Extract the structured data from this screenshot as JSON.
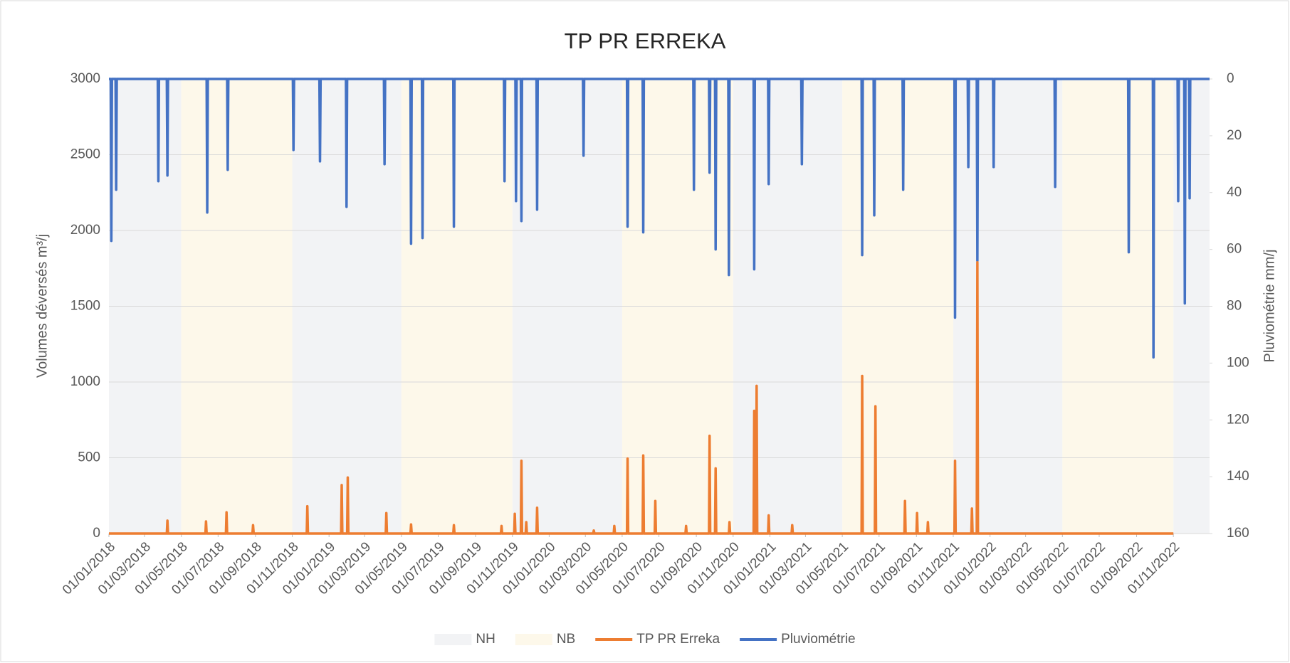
{
  "chart_data": {
    "type": "line",
    "title": "TP PR ERREKA",
    "y_label": "Volumes déversés m³/j",
    "y2_label": "Pluviométrie mm/j",
    "xlim": [
      "01/01/2018",
      "31/12/2022"
    ],
    "xticks": [
      "01/01/2018",
      "01/03/2018",
      "01/05/2018",
      "01/07/2018",
      "01/09/2018",
      "01/11/2018",
      "01/01/2019",
      "01/03/2019",
      "01/05/2019",
      "01/07/2019",
      "01/09/2019",
      "01/11/2019",
      "01/01/2020",
      "01/03/2020",
      "01/05/2020",
      "01/07/2020",
      "01/09/2020",
      "01/11/2020",
      "01/01/2021",
      "01/03/2021",
      "01/05/2021",
      "01/07/2021",
      "01/09/2021",
      "01/11/2021",
      "01/01/2022",
      "01/03/2022",
      "01/05/2022",
      "01/07/2022",
      "01/09/2022",
      "01/11/2022"
    ],
    "ylim": [
      0,
      3000
    ],
    "yticks": [
      0,
      500,
      1000,
      1500,
      2000,
      2500,
      3000
    ],
    "y2lim": [
      160,
      0
    ],
    "y2ticks": [
      0,
      20,
      40,
      60,
      80,
      100,
      120,
      140,
      160
    ],
    "grid": true,
    "legend": "bottom",
    "bands": [
      {
        "name": "NH",
        "color": "#f2f3f5",
        "periods": [
          [
            "01/01/2018",
            "01/05/2018"
          ],
          [
            "01/11/2018",
            "01/05/2019"
          ],
          [
            "01/11/2019",
            "01/05/2020"
          ],
          [
            "01/11/2020",
            "01/05/2021"
          ],
          [
            "01/11/2021",
            "01/05/2022"
          ],
          [
            "01/11/2022",
            "31/12/2022"
          ]
        ]
      },
      {
        "name": "NB",
        "color": "#fdf8ea",
        "periods": [
          [
            "01/05/2018",
            "01/11/2018"
          ],
          [
            "01/05/2019",
            "01/11/2019"
          ],
          [
            "01/05/2020",
            "01/11/2020"
          ],
          [
            "01/05/2021",
            "01/11/2021"
          ],
          [
            "01/05/2022",
            "01/11/2022"
          ]
        ]
      }
    ],
    "series": [
      {
        "name": "Pluviométrie",
        "color": "#4472c4",
        "axis": "y2",
        "x": [
          "01/01/2018",
          "04/01/2018",
          "05/01/2018",
          "06/01/2018",
          "12/01/2018",
          "13/01/2018",
          "14/01/2018",
          "23/03/2018",
          "24/03/2018",
          "25/03/2018",
          "07/04/2018",
          "08/04/2018",
          "09/04/2018",
          "12/06/2018",
          "13/06/2018",
          "14/06/2018",
          "16/07/2018",
          "17/07/2018",
          "18/07/2018",
          "02/11/2018",
          "03/11/2018",
          "04/11/2018",
          "16/12/2018",
          "17/12/2018",
          "18/12/2018",
          "29/01/2019",
          "30/01/2019",
          "31/01/2019",
          "02/04/2019",
          "03/04/2019",
          "04/04/2019",
          "16/05/2019",
          "17/05/2019",
          "18/05/2019",
          "04/06/2019",
          "05/06/2019",
          "06/06/2019",
          "26/07/2019",
          "27/07/2019",
          "28/07/2019",
          "18/10/2019",
          "19/10/2019",
          "20/10/2019",
          "06/11/2019",
          "07/11/2019",
          "08/11/2019",
          "15/11/2019",
          "16/11/2019",
          "17/11/2019",
          "11/12/2019",
          "12/12/2019",
          "13/12/2019",
          "26/02/2020",
          "27/02/2020",
          "28/02/2020",
          "09/05/2020",
          "10/05/2020",
          "11/05/2020",
          "04/06/2020",
          "05/06/2020",
          "06/06/2020",
          "27/08/2020",
          "28/08/2020",
          "29/08/2020",
          "22/09/2020",
          "23/09/2020",
          "24/09/2020",
          "02/10/2020",
          "03/10/2020",
          "04/10/2020",
          "24/10/2020",
          "25/10/2020",
          "26/10/2020",
          "05/12/2020",
          "06/12/2020",
          "07/12/2020",
          "29/12/2020",
          "30/12/2020",
          "31/12/2020",
          "22/02/2021",
          "23/02/2021",
          "24/02/2021",
          "02/06/2021",
          "03/06/2021",
          "04/06/2021",
          "22/06/2021",
          "23/06/2021",
          "24/06/2021",
          "09/08/2021",
          "10/08/2021",
          "11/08/2021",
          "03/11/2021",
          "04/11/2021",
          "05/11/2021",
          "25/11/2021",
          "26/11/2021",
          "27/11/2021",
          "10/12/2021",
          "11/12/2021",
          "12/12/2021",
          "06/01/2022",
          "07/01/2022",
          "08/01/2022",
          "18/04/2022",
          "19/04/2022",
          "20/04/2022",
          "18/08/2022",
          "19/08/2022",
          "20/08/2022",
          "28/09/2022",
          "29/09/2022",
          "30/09/2022",
          "08/11/2022",
          "09/11/2022",
          "10/11/2022",
          "19/11/2022",
          "20/11/2022",
          "21/11/2022",
          "27/11/2022",
          "28/11/2022",
          "29/11/2022",
          "31/12/2022"
        ],
        "values": [
          0,
          0,
          57,
          0,
          0,
          39,
          0,
          0,
          36,
          0,
          0,
          34,
          0,
          0,
          47,
          0,
          0,
          32,
          0,
          0,
          25,
          0,
          0,
          29,
          0,
          0,
          45,
          0,
          0,
          30,
          0,
          0,
          58,
          0,
          0,
          56,
          0,
          0,
          52,
          0,
          0,
          36,
          0,
          0,
          43,
          0,
          0,
          50,
          0,
          0,
          46,
          0,
          0,
          27,
          0,
          0,
          52,
          0,
          0,
          54,
          0,
          0,
          39,
          0,
          0,
          33,
          0,
          0,
          60,
          0,
          0,
          69,
          0,
          0,
          67,
          0,
          0,
          37,
          0,
          0,
          30,
          0,
          0,
          62,
          0,
          0,
          48,
          0,
          0,
          39,
          0,
          0,
          84,
          0,
          0,
          31,
          0,
          0,
          64,
          0,
          0,
          31,
          0,
          0,
          38,
          0,
          0,
          61,
          0,
          0,
          98,
          0,
          0,
          43,
          0,
          0,
          79,
          0,
          0,
          42,
          0,
          0
        ]
      },
      {
        "name": "TP PR Erreka",
        "color": "#ed7d31",
        "x": [
          "01/01/2018",
          "07/04/2018",
          "08/04/2018",
          "09/04/2018",
          "10/06/2018",
          "11/06/2018",
          "12/06/2018",
          "14/07/2018",
          "15/07/2018",
          "16/07/2018",
          "27/08/2018",
          "28/08/2018",
          "29/08/2018",
          "25/11/2018",
          "26/11/2018",
          "27/11/2018",
          "21/01/2019",
          "22/01/2019",
          "23/01/2019",
          "31/01/2019",
          "01/02/2019",
          "02/02/2019",
          "05/04/2019",
          "06/04/2019",
          "07/04/2019",
          "16/05/2019",
          "17/05/2019",
          "18/05/2019",
          "26/07/2019",
          "27/07/2019",
          "28/07/2019",
          "13/10/2019",
          "14/10/2019",
          "15/10/2019",
          "04/11/2019",
          "05/11/2019",
          "06/11/2019",
          "15/11/2019",
          "16/11/2019",
          "17/11/2019",
          "23/11/2019",
          "24/11/2019",
          "25/11/2019",
          "11/12/2019",
          "12/12/2019",
          "13/12/2019",
          "14/03/2020",
          "15/03/2020",
          "16/03/2020",
          "17/04/2020",
          "18/04/2020",
          "19/04/2020",
          "09/05/2020",
          "10/05/2020",
          "11/05/2020",
          "04/06/2020",
          "05/06/2020",
          "06/06/2020",
          "24/06/2020",
          "25/06/2020",
          "26/06/2020",
          "14/08/2020",
          "15/08/2020",
          "16/08/2020",
          "22/09/2020",
          "23/09/2020",
          "24/09/2020",
          "02/10/2020",
          "03/10/2020",
          "04/10/2020",
          "25/10/2020",
          "26/10/2020",
          "27/10/2020",
          "05/12/2020",
          "06/12/2020",
          "07/12/2020",
          "09/12/2020",
          "10/12/2020",
          "11/12/2020",
          "29/12/2020",
          "30/12/2020",
          "31/12/2020",
          "06/02/2021",
          "07/02/2021",
          "08/02/2021",
          "02/06/2021",
          "03/06/2021",
          "04/06/2021",
          "24/06/2021",
          "25/06/2021",
          "26/06/2021",
          "12/08/2021",
          "13/08/2021",
          "14/08/2021",
          "01/09/2021",
          "02/09/2021",
          "03/09/2021",
          "19/09/2021",
          "20/09/2021",
          "21/09/2021",
          "03/11/2021",
          "04/11/2021",
          "05/11/2021",
          "01/12/2021",
          "02/12/2021",
          "03/12/2021",
          "10/12/2021",
          "11/12/2021",
          "12/12/2021",
          "01/11/2022"
        ],
        "values": [
          0,
          0,
          85,
          0,
          0,
          80,
          0,
          0,
          140,
          0,
          0,
          55,
          0,
          0,
          180,
          0,
          0,
          320,
          0,
          0,
          370,
          0,
          0,
          135,
          0,
          0,
          60,
          0,
          0,
          55,
          0,
          0,
          50,
          0,
          0,
          130,
          0,
          0,
          480,
          0,
          0,
          75,
          0,
          0,
          170,
          0,
          0,
          20,
          0,
          0,
          50,
          0,
          0,
          495,
          0,
          0,
          515,
          0,
          0,
          215,
          0,
          0,
          50,
          0,
          0,
          645,
          0,
          0,
          430,
          0,
          0,
          75,
          0,
          0,
          810,
          0,
          0,
          975,
          0,
          0,
          120,
          0,
          0,
          55,
          0,
          0,
          1040,
          0,
          0,
          840,
          0,
          0,
          215,
          0,
          0,
          135,
          0,
          0,
          75,
          0,
          0,
          480,
          0,
          0,
          165,
          0,
          0,
          1790,
          0,
          0
        ]
      }
    ]
  }
}
